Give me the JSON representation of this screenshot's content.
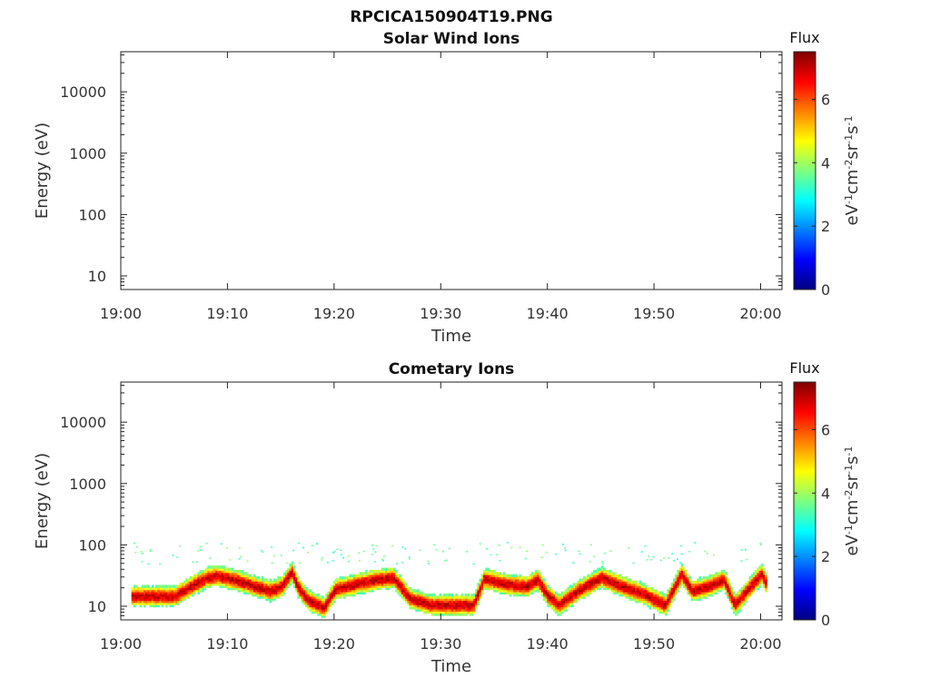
{
  "figure": {
    "filename_title": "RPCICA150904T19.PNG"
  },
  "colors": {
    "colormap": [
      "#00007f",
      "#0000ff",
      "#007fff",
      "#00ffff",
      "#7fff7f",
      "#ffff00",
      "#ff7f00",
      "#ff0000",
      "#7f0000"
    ]
  },
  "chart_data": [
    {
      "type": "heatmap",
      "title": "Solar Wind Ions",
      "xlabel": "Time",
      "ylabel": "Energy (eV)",
      "x_tick_labels": [
        "19:00",
        "19:10",
        "19:20",
        "19:30",
        "19:40",
        "19:50",
        "20:00"
      ],
      "x_range": [
        "19:00",
        "20:02"
      ],
      "y_scale": "log",
      "y_range": [
        6,
        45000
      ],
      "y_tick_values": [
        10,
        100,
        1000,
        10000
      ],
      "y_tick_labels": [
        "10",
        "100",
        "1000",
        "10000"
      ],
      "colorbar": {
        "title": "Flux",
        "label": "eV-1cm-2sr-1s-1",
        "range": [
          0,
          7.5
        ],
        "tick_labels": [
          "0",
          "2",
          "4",
          "6"
        ]
      },
      "series": []
    },
    {
      "type": "heatmap",
      "title": "Cometary Ions",
      "xlabel": "Time",
      "ylabel": "Energy (eV)",
      "x_tick_labels": [
        "19:00",
        "19:10",
        "19:20",
        "19:30",
        "19:40",
        "19:50",
        "20:00"
      ],
      "x_range": [
        "19:00",
        "20:02"
      ],
      "y_scale": "log",
      "y_range": [
        6,
        45000
      ],
      "y_tick_values": [
        10,
        100,
        1000,
        10000
      ],
      "y_tick_labels": [
        "10",
        "100",
        "1000",
        "10000"
      ],
      "colorbar": {
        "title": "Flux",
        "label": "eV-1cm-2sr-1s-1",
        "range": [
          0,
          7.5
        ],
        "tick_labels": [
          "0",
          "2",
          "4",
          "6"
        ]
      },
      "band_center_energy_eV": [
        [
          "19:01",
          14
        ],
        [
          "19:05",
          14
        ],
        [
          "19:06.5",
          20
        ],
        [
          "19:08",
          28
        ],
        [
          "19:09",
          30
        ],
        [
          "19:11",
          25
        ],
        [
          "19:12.5",
          20
        ],
        [
          "19:14",
          17
        ],
        [
          "19:15",
          20
        ],
        [
          "19:16",
          35
        ],
        [
          "19:16.5",
          20
        ],
        [
          "19:17.5",
          12
        ],
        [
          "19:19",
          9
        ],
        [
          "19:20",
          18
        ],
        [
          "19:22",
          22
        ],
        [
          "19:24",
          26
        ],
        [
          "19:25.5",
          28
        ],
        [
          "19:27",
          13
        ],
        [
          "19:29",
          10
        ],
        [
          "19:33",
          10
        ],
        [
          "19:34",
          27
        ],
        [
          "19:36",
          22
        ],
        [
          "19:38",
          20
        ],
        [
          "19:39",
          26
        ],
        [
          "19:40",
          14
        ],
        [
          "19:41",
          10
        ],
        [
          "19:43",
          18
        ],
        [
          "19:45",
          28
        ],
        [
          "19:47",
          20
        ],
        [
          "19:49",
          15
        ],
        [
          "19:51",
          10
        ],
        [
          "19:52.5",
          32
        ],
        [
          "19:53.5",
          17
        ],
        [
          "19:55",
          20
        ],
        [
          "19:56.5",
          26
        ],
        [
          "19:57.5",
          10
        ],
        [
          "19:58.5",
          16
        ],
        [
          "20:00",
          32
        ],
        [
          "20:00.5",
          22
        ]
      ],
      "band_peak_intensity": 7,
      "scattered_points_energy_eV": 75,
      "scattered_points_intensity": 3
    }
  ]
}
